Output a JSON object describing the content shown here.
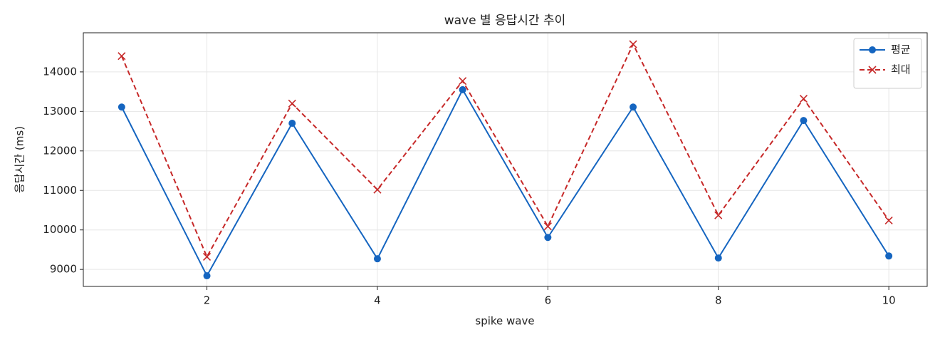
{
  "chart_data": {
    "type": "line",
    "title": "wave 별 응답시간 추이",
    "x_label": "spike wave",
    "y_label": "응답시간 (ms)",
    "x": [
      1,
      2,
      3,
      4,
      5,
      6,
      7,
      8,
      9,
      10
    ],
    "series": [
      {
        "name": "평균",
        "color": "#1565c0",
        "marker": "o",
        "linestyle": "solid",
        "values": [
          13110,
          8840,
          12700,
          9270,
          13550,
          9810,
          13110,
          9290,
          12770,
          9340
        ]
      },
      {
        "name": "최대",
        "color": "#c62828",
        "marker": "x",
        "linestyle": "dashed",
        "values": [
          14400,
          9320,
          13200,
          11020,
          13770,
          10090,
          14700,
          10370,
          13320,
          10240
        ]
      }
    ],
    "xlim": [
      0.55,
      10.45
    ],
    "xticks": [
      2,
      4,
      6,
      8,
      10
    ],
    "ylim": [
      8570,
      14990
    ],
    "yticks": [
      9000,
      10000,
      11000,
      12000,
      13000,
      14000
    ],
    "grid": true,
    "legend": "upper right"
  }
}
